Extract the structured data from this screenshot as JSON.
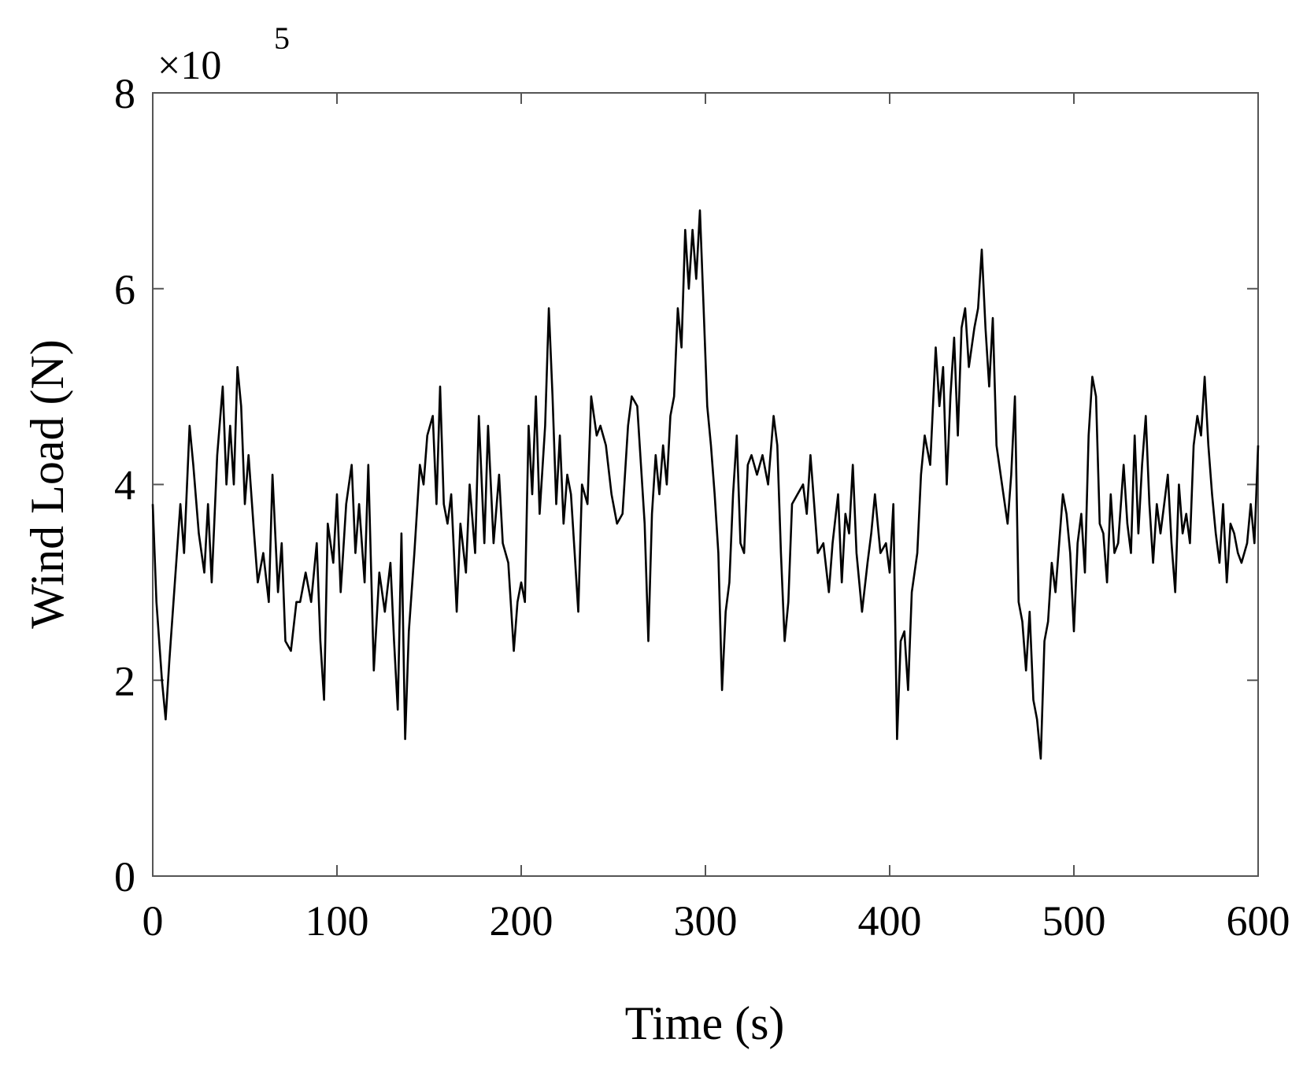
{
  "chart_data": {
    "type": "line",
    "xlabel": "Time (s)",
    "ylabel": "Wind Load (N)",
    "y_multiplier": {
      "base": "×10",
      "exponent": "5"
    },
    "xlim": [
      0,
      600
    ],
    "xticks": [
      0,
      100,
      200,
      300,
      400,
      500,
      600
    ],
    "ylim": [
      0,
      8
    ],
    "yticks": [
      0,
      2,
      4,
      6,
      8
    ],
    "color": "#000000",
    "x": [
      0,
      2,
      5,
      7,
      9,
      12,
      15,
      17,
      20,
      22,
      25,
      28,
      30,
      32,
      35,
      38,
      40,
      42,
      44,
      46,
      48,
      50,
      52,
      55,
      57,
      60,
      63,
      65,
      68,
      70,
      72,
      75,
      78,
      80,
      83,
      86,
      89,
      91,
      93,
      95,
      98,
      100,
      102,
      105,
      108,
      110,
      112,
      115,
      117,
      120,
      123,
      126,
      129,
      131,
      133,
      135,
      137,
      139,
      142,
      145,
      147,
      149,
      152,
      154,
      156,
      158,
      160,
      162,
      165,
      167,
      170,
      172,
      175,
      177,
      180,
      182,
      185,
      188,
      190,
      193,
      196,
      198,
      200,
      202,
      204,
      206,
      208,
      210,
      213,
      215,
      217,
      219,
      221,
      223,
      225,
      227,
      229,
      231,
      233,
      236,
      238,
      241,
      243,
      246,
      249,
      252,
      255,
      258,
      260,
      263,
      265,
      267,
      269,
      271,
      273,
      275,
      277,
      279,
      281,
      283,
      285,
      287,
      289,
      291,
      293,
      295,
      297,
      299,
      301,
      303,
      305,
      307,
      309,
      311,
      313,
      315,
      317,
      319,
      321,
      323,
      325,
      328,
      331,
      334,
      337,
      339,
      341,
      343,
      345,
      347,
      350,
      353,
      355,
      357,
      359,
      361,
      364,
      367,
      369,
      372,
      374,
      376,
      378,
      380,
      382,
      385,
      388,
      390,
      392,
      395,
      398,
      400,
      402,
      404,
      406,
      408,
      410,
      412,
      415,
      417,
      419,
      422,
      425,
      427,
      429,
      431,
      433,
      435,
      437,
      439,
      441,
      443,
      446,
      448,
      450,
      452,
      454,
      456,
      458,
      461,
      464,
      466,
      468,
      470,
      472,
      474,
      476,
      478,
      480,
      482,
      484,
      486,
      488,
      490,
      492,
      494,
      496,
      498,
      500,
      502,
      504,
      506,
      508,
      510,
      512,
      514,
      516,
      518,
      520,
      522,
      524,
      527,
      529,
      531,
      533,
      535,
      537,
      539,
      541,
      543,
      545,
      547,
      549,
      551,
      553,
      555,
      557,
      559,
      561,
      563,
      565,
      567,
      569,
      571,
      573,
      575,
      577,
      579,
      581,
      583,
      585,
      587,
      589,
      591,
      594,
      596,
      598,
      600
    ],
    "values": [
      3.8,
      2.8,
      2.0,
      1.6,
      2.2,
      3.0,
      3.8,
      3.3,
      4.6,
      4.2,
      3.5,
      3.1,
      3.8,
      3.0,
      4.3,
      5.0,
      4.0,
      4.6,
      4.0,
      5.2,
      4.8,
      3.8,
      4.3,
      3.5,
      3.0,
      3.3,
      2.8,
      4.1,
      2.9,
      3.4,
      2.4,
      2.3,
      2.8,
      2.8,
      3.1,
      2.8,
      3.4,
      2.4,
      1.8,
      3.6,
      3.2,
      3.9,
      2.9,
      3.8,
      4.2,
      3.3,
      3.8,
      3.0,
      4.2,
      2.1,
      3.1,
      2.7,
      3.2,
      2.4,
      1.7,
      3.5,
      1.4,
      2.5,
      3.3,
      4.2,
      4.0,
      4.5,
      4.7,
      3.8,
      5.0,
      3.8,
      3.6,
      3.9,
      2.7,
      3.6,
      3.1,
      4.0,
      3.3,
      4.7,
      3.4,
      4.6,
      3.4,
      4.1,
      3.4,
      3.2,
      2.3,
      2.8,
      3.0,
      2.8,
      4.6,
      3.9,
      4.9,
      3.7,
      4.6,
      5.8,
      4.9,
      3.8,
      4.5,
      3.6,
      4.1,
      3.9,
      3.3,
      2.7,
      4.0,
      3.8,
      4.9,
      4.5,
      4.6,
      4.4,
      3.9,
      3.6,
      3.7,
      4.6,
      4.9,
      4.8,
      4.2,
      3.6,
      2.4,
      3.7,
      4.3,
      3.9,
      4.4,
      4.0,
      4.7,
      4.9,
      5.8,
      5.4,
      6.6,
      6.0,
      6.6,
      6.1,
      6.8,
      5.8,
      4.8,
      4.4,
      3.9,
      3.3,
      1.9,
      2.7,
      3.0,
      3.9,
      4.5,
      3.4,
      3.3,
      4.2,
      4.3,
      4.1,
      4.3,
      4.0,
      4.7,
      4.4,
      3.3,
      2.4,
      2.8,
      3.8,
      3.9,
      4.0,
      3.7,
      4.3,
      3.8,
      3.3,
      3.4,
      2.9,
      3.4,
      3.9,
      3.0,
      3.7,
      3.5,
      4.2,
      3.3,
      2.7,
      3.2,
      3.5,
      3.9,
      3.3,
      3.4,
      3.1,
      3.8,
      1.4,
      2.4,
      2.5,
      1.9,
      2.9,
      3.3,
      4.1,
      4.5,
      4.2,
      5.4,
      4.8,
      5.2,
      4.0,
      4.9,
      5.5,
      4.5,
      5.6,
      5.8,
      5.2,
      5.6,
      5.8,
      6.4,
      5.6,
      5.0,
      5.7,
      4.4,
      4.0,
      3.6,
      4.1,
      4.9,
      2.8,
      2.6,
      2.1,
      2.7,
      1.8,
      1.6,
      1.2,
      2.4,
      2.6,
      3.2,
      2.9,
      3.4,
      3.9,
      3.7,
      3.3,
      2.5,
      3.4,
      3.7,
      3.1,
      4.5,
      5.1,
      4.9,
      3.6,
      3.5,
      3.0,
      3.9,
      3.3,
      3.4,
      4.2,
      3.6,
      3.3,
      4.5,
      3.5,
      4.2,
      4.7,
      3.8,
      3.2,
      3.8,
      3.5,
      3.8,
      4.1,
      3.4,
      2.9,
      4.0,
      3.5,
      3.7,
      3.4,
      4.4,
      4.7,
      4.5,
      5.1,
      4.4,
      3.9,
      3.5,
      3.2,
      3.8,
      3.0,
      3.6,
      3.5,
      3.3,
      3.2,
      3.4,
      3.8,
      3.4,
      4.4
    ]
  }
}
